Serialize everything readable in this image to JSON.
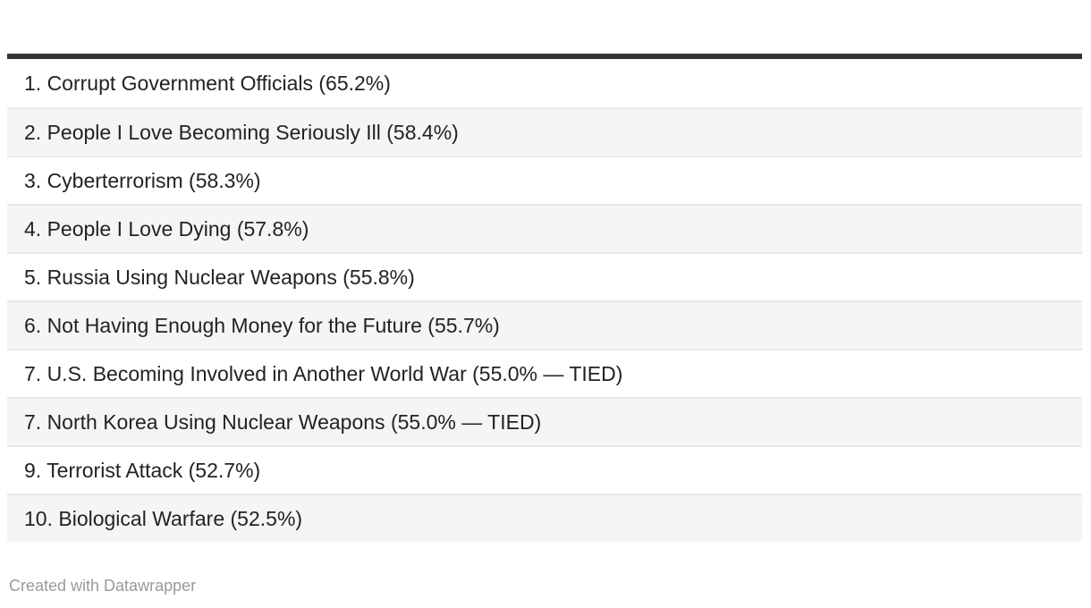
{
  "table": {
    "rows": [
      {
        "display": "1. Corrupt Government Officials (65.2%)"
      },
      {
        "display": "2. People I Love Becoming Seriously Ill (58.4%)"
      },
      {
        "display": "3. Cyberterrorism (58.3%)"
      },
      {
        "display": "4. People I Love Dying (57.8%)"
      },
      {
        "display": "5. Russia Using Nuclear Weapons (55.8%)"
      },
      {
        "display": "6. Not Having Enough Money for the Future (55.7%)"
      },
      {
        "display": "7. U.S. Becoming Involved in Another World War (55.0% — TIED)"
      },
      {
        "display": "7. North Korea Using Nuclear Weapons (55.0% — TIED)"
      },
      {
        "display": "9. Terrorist Attack (52.7%)"
      },
      {
        "display": "10. Biological Warfare (52.5%)"
      }
    ]
  },
  "footer": {
    "credit": "Created with Datawrapper"
  },
  "chart_data": {
    "type": "table",
    "title": "",
    "value_unit": "%",
    "rows": [
      {
        "rank": 1,
        "category": "Corrupt Government Officials",
        "value": 65.2,
        "tied": false
      },
      {
        "rank": 2,
        "category": "People I Love Becoming Seriously Ill",
        "value": 58.4,
        "tied": false
      },
      {
        "rank": 3,
        "category": "Cyberterrorism",
        "value": 58.3,
        "tied": false
      },
      {
        "rank": 4,
        "category": "People I Love Dying",
        "value": 57.8,
        "tied": false
      },
      {
        "rank": 5,
        "category": "Russia Using Nuclear Weapons",
        "value": 55.8,
        "tied": false
      },
      {
        "rank": 6,
        "category": "Not Having Enough Money for the Future",
        "value": 55.7,
        "tied": false
      },
      {
        "rank": 7,
        "category": "U.S. Becoming Involved in Another World War",
        "value": 55.0,
        "tied": true
      },
      {
        "rank": 7,
        "category": "North Korea Using Nuclear Weapons",
        "value": 55.0,
        "tied": true
      },
      {
        "rank": 9,
        "category": "Terrorist Attack",
        "value": 52.7,
        "tied": false
      },
      {
        "rank": 10,
        "category": "Biological Warfare",
        "value": 52.5,
        "tied": false
      }
    ],
    "layout": {
      "striped_rows": true,
      "stripe_order": [
        "white",
        "gray"
      ],
      "top_rule": true
    }
  },
  "colors": {
    "top_rule": "#333333",
    "row_text": "#222222",
    "row_stripe": "#f5f5f5",
    "row_separator": "#e9e9e9",
    "credit_text": "#9a9a9a",
    "background": "#ffffff"
  }
}
